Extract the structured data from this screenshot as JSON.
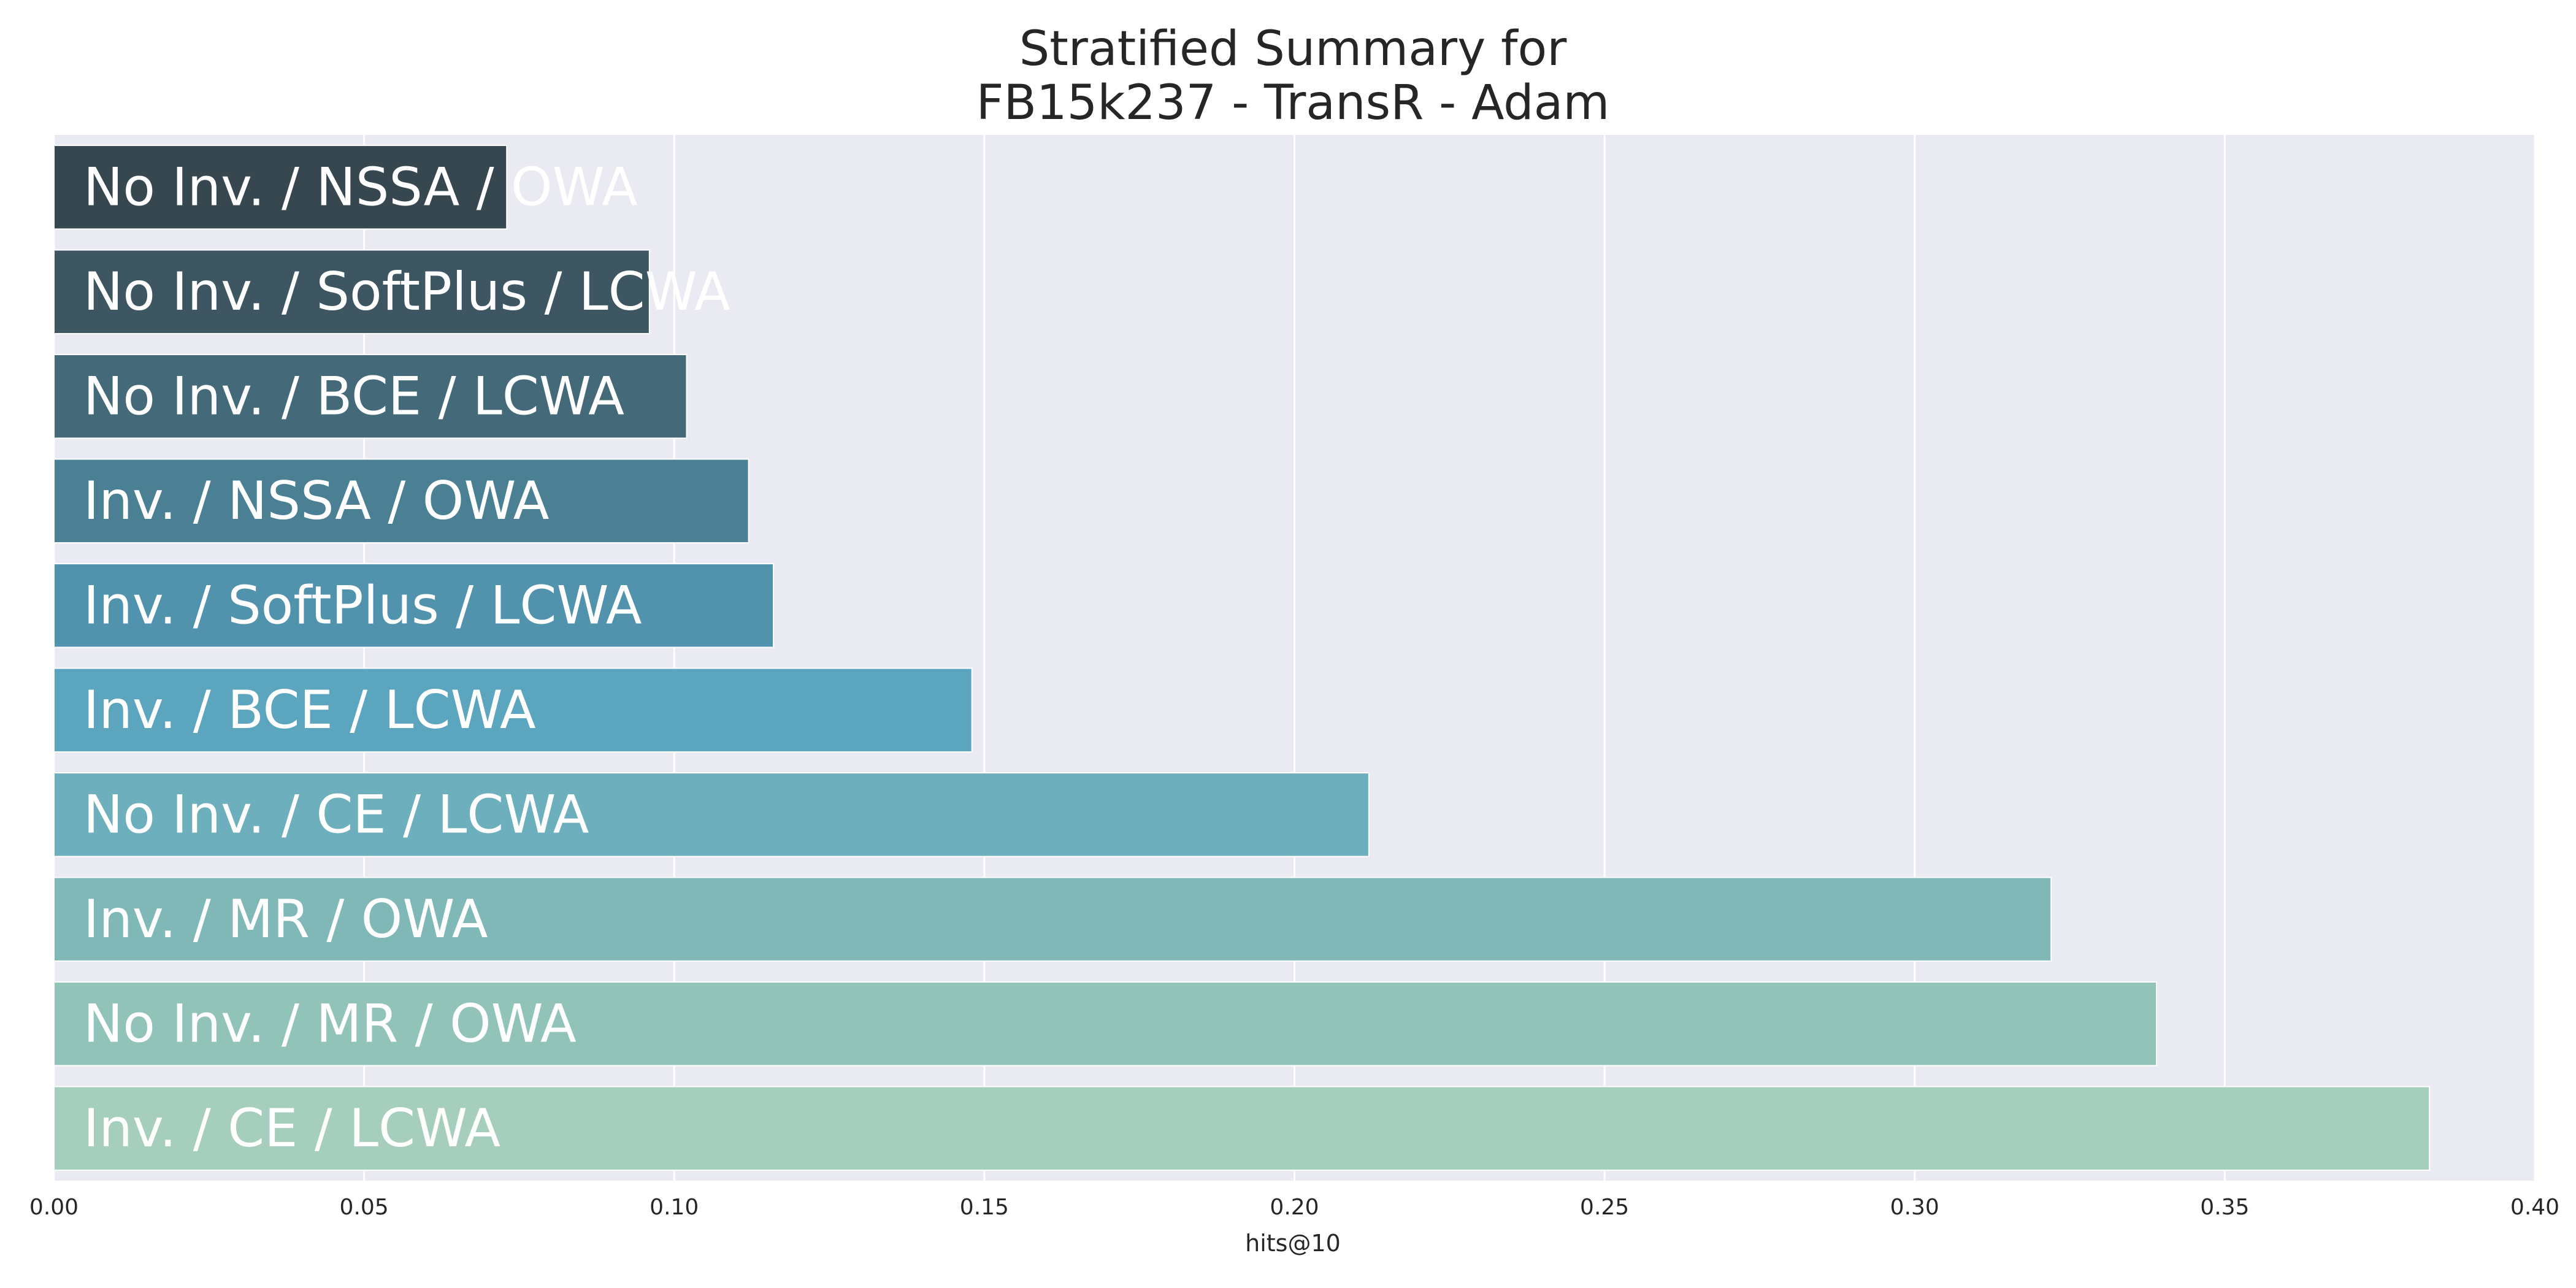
{
  "chart_data": {
    "type": "bar",
    "orientation": "horizontal",
    "title": "Stratified Summary for\nFB15k237 - TransR - Adam",
    "title_lines": [
      "Stratified Summary for",
      "FB15k237 - TransR - Adam"
    ],
    "xlabel": "hits@10",
    "ylabel": "",
    "xlim": [
      0.0,
      0.4
    ],
    "xticks": [
      0.0,
      0.05,
      0.1,
      0.15,
      0.2,
      0.25,
      0.3,
      0.35,
      0.4
    ],
    "xtick_labels": [
      "0.00",
      "0.05",
      "0.10",
      "0.15",
      "0.20",
      "0.25",
      "0.30",
      "0.35",
      "0.40"
    ],
    "grid": "x",
    "background_color": "#eaeaf2",
    "categories": [
      "No Inv. / NSSA / OWA",
      "No Inv. / SoftPlus / LCWA",
      "No Inv. / BCE / LCWA",
      "Inv. / NSSA / OWA",
      "Inv. / SoftPlus / LCWA",
      "Inv. / BCE / LCWA",
      "No Inv. / CE / LCWA",
      "Inv. / MR / OWA",
      "No Inv. / MR / OWA",
      "Inv. / CE / LCWA"
    ],
    "values": [
      0.073,
      0.096,
      0.102,
      0.112,
      0.116,
      0.148,
      0.212,
      0.322,
      0.339,
      0.383
    ],
    "colors": [
      "#37474f",
      "#3e5661",
      "#446a7a",
      "#4a7f94",
      "#5193ad",
      "#5ba5bf",
      "#6eafbd",
      "#80b8b8",
      "#92c3b9",
      "#a5cfbc"
    ]
  }
}
